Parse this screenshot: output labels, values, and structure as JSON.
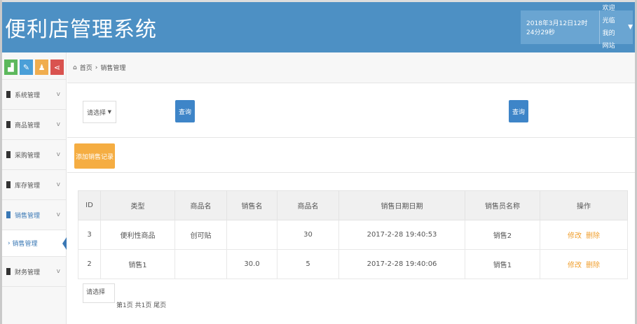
{
  "header": {
    "title": "便利店管理系统",
    "datetime": "2018年3月12日12时24分29秒",
    "welcome": "欢迎光临",
    "site": "我的网站"
  },
  "colors": {
    "header": "#4d90c4",
    "primary": "#3e85c8",
    "warning": "#f5ad42",
    "shortcuts": [
      "#5cb85c",
      "#4a9fd8",
      "#f0ad4e",
      "#d9534f"
    ]
  },
  "shortcuts": [
    "chart-icon",
    "pencil-icon",
    "user-icon",
    "share-icon"
  ],
  "sidebar": {
    "items": [
      {
        "label": "系统管理"
      },
      {
        "label": "商品管理"
      },
      {
        "label": "采购管理"
      },
      {
        "label": "库存管理"
      },
      {
        "label": "销售管理"
      }
    ],
    "sub": "销售管理",
    "last": "财务管理"
  },
  "breadcrumb": {
    "home": "首页",
    "sep": "›",
    "current": "销售管理"
  },
  "search": {
    "select": "请选择",
    "query1": "查询",
    "query2": "查询"
  },
  "add_button": "添加销售记录",
  "table": {
    "headers": [
      "ID",
      "类型",
      "商品名",
      "销售名",
      "商品名",
      "销售日期日期",
      "销售员名称",
      "操作"
    ],
    "rows": [
      [
        "3",
        "便利性商品",
        "创可贴",
        "",
        "30",
        "2017-2-28 19:40:53",
        "销售2"
      ],
      [
        "2",
        "销售1",
        "",
        "30.0",
        "5",
        "2017-2-28 19:40:06",
        "销售1"
      ]
    ],
    "edit": "修改",
    "delete": "删除"
  },
  "pager": {
    "select": "请选择",
    "text": "第1页 共1页 尾页"
  }
}
